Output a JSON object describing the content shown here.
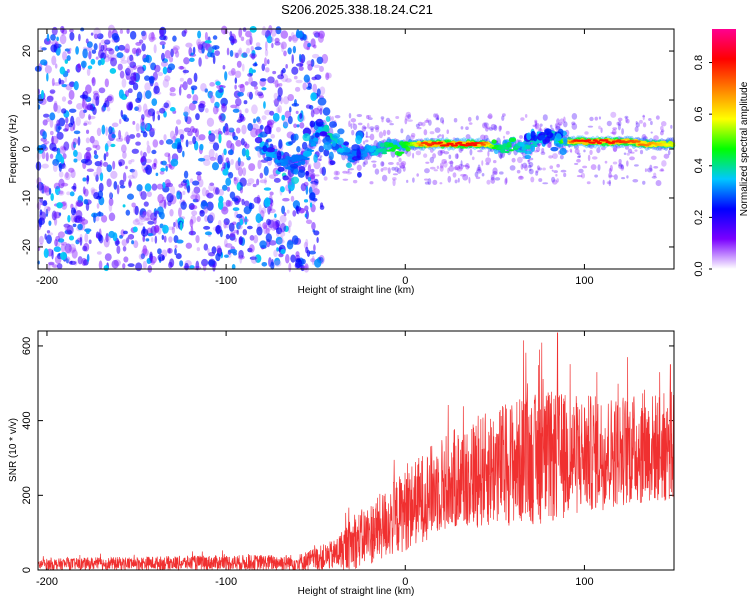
{
  "title": "S206.2025.338.18.24.C21",
  "chart_data": [
    {
      "type": "heatmap",
      "name": "spectrogram",
      "xlabel": "Height of straight line (km)",
      "ylabel": "Frequency (Hz)",
      "xlim": [
        -205,
        150
      ],
      "ylim": [
        -24.5,
        24.5
      ],
      "xticks": [
        -200,
        -100,
        0,
        100
      ],
      "yticks": [
        -20,
        -10,
        0,
        10,
        20
      ],
      "colorbar": {
        "label": "Normalized spectral amplitude",
        "range": [
          0.0,
          0.93
        ],
        "ticks": [
          0.0,
          0.2,
          0.4,
          0.6,
          0.8
        ],
        "tick_labels": [
          "0.0",
          "0.2",
          "0.4",
          "0.6",
          "0.8"
        ],
        "colormap": [
          "#ffffff",
          "#7a00ff",
          "#0000ff",
          "#00c8ff",
          "#00ff00",
          "#ffff00",
          "#ff8000",
          "#ff0000",
          "#ff0090"
        ]
      },
      "noise_region": {
        "x_range": [
          -205,
          -50
        ],
        "amplitude_range": [
          0.0,
          0.3
        ]
      },
      "ridge": [
        {
          "x": -80,
          "f": 0.5,
          "a": 0.35
        },
        {
          "x": -65,
          "f": -3.0,
          "a": 0.3
        },
        {
          "x": -55,
          "f": -1.5,
          "a": 0.3
        },
        {
          "x": -47,
          "f": 5.0,
          "a": 0.35
        },
        {
          "x": -42,
          "f": 2.5,
          "a": 0.4
        },
        {
          "x": -35,
          "f": 0.0,
          "a": 0.35
        },
        {
          "x": -30,
          "f": -1.5,
          "a": 0.3
        },
        {
          "x": -25,
          "f": -1.0,
          "a": 0.3
        },
        {
          "x": -18,
          "f": 0.0,
          "a": 0.35
        },
        {
          "x": -12,
          "f": 0.0,
          "a": 0.4
        },
        {
          "x": -8,
          "f": 0.5,
          "a": 0.45
        },
        {
          "x": -3,
          "f": 0.0,
          "a": 0.45
        },
        {
          "x": 0,
          "f": 1.0,
          "a": 0.45
        },
        {
          "x": 5,
          "f": 1.0,
          "a": 0.55
        },
        {
          "x": 10,
          "f": 1.0,
          "a": 0.75
        },
        {
          "x": 20,
          "f": 1.0,
          "a": 0.8
        },
        {
          "x": 30,
          "f": 1.0,
          "a": 0.8
        },
        {
          "x": 40,
          "f": 1.0,
          "a": 0.8
        },
        {
          "x": 45,
          "f": 1.0,
          "a": 0.7
        },
        {
          "x": 50,
          "f": 0.5,
          "a": 0.45
        },
        {
          "x": 55,
          "f": 0.0,
          "a": 0.4
        },
        {
          "x": 60,
          "f": 1.0,
          "a": 0.45
        },
        {
          "x": 65,
          "f": 0.0,
          "a": 0.35
        },
        {
          "x": 70,
          "f": 1.0,
          "a": 0.4
        },
        {
          "x": 75,
          "f": 2.5,
          "a": 0.35
        },
        {
          "x": 80,
          "f": 2.5,
          "a": 0.4
        },
        {
          "x": 85,
          "f": 2.0,
          "a": 0.35
        },
        {
          "x": 90,
          "f": 1.5,
          "a": 0.6
        },
        {
          "x": 95,
          "f": 1.5,
          "a": 0.8
        },
        {
          "x": 105,
          "f": 1.5,
          "a": 0.8
        },
        {
          "x": 115,
          "f": 1.5,
          "a": 0.8
        },
        {
          "x": 125,
          "f": 1.5,
          "a": 0.75
        },
        {
          "x": 135,
          "f": 1.0,
          "a": 0.7
        },
        {
          "x": 145,
          "f": 1.0,
          "a": 0.6
        },
        {
          "x": 150,
          "f": 1.0,
          "a": 0.55
        }
      ]
    },
    {
      "type": "line",
      "name": "snr",
      "xlabel": "Height of straight line (km)",
      "ylabel": "SNR (10 * v/v)",
      "xlim": [
        -205,
        150
      ],
      "ylim": [
        0,
        640
      ],
      "xticks": [
        -200,
        -100,
        0,
        100
      ],
      "yticks": [
        0,
        200,
        400,
        600
      ],
      "color": "#f03030",
      "envelope": [
        {
          "x": -205,
          "mean": 15,
          "spread": 15
        },
        {
          "x": -150,
          "mean": 18,
          "spread": 18
        },
        {
          "x": -100,
          "mean": 20,
          "spread": 20
        },
        {
          "x": -60,
          "mean": 20,
          "spread": 22
        },
        {
          "x": -40,
          "mean": 40,
          "spread": 40
        },
        {
          "x": -30,
          "mean": 70,
          "spread": 70
        },
        {
          "x": -15,
          "mean": 110,
          "spread": 90
        },
        {
          "x": 0,
          "mean": 160,
          "spread": 110
        },
        {
          "x": 20,
          "mean": 230,
          "spread": 130
        },
        {
          "x": 40,
          "mean": 260,
          "spread": 150
        },
        {
          "x": 60,
          "mean": 290,
          "spread": 170
        },
        {
          "x": 80,
          "mean": 300,
          "spread": 180
        },
        {
          "x": 100,
          "mean": 310,
          "spread": 160
        },
        {
          "x": 120,
          "mean": 320,
          "spread": 150
        },
        {
          "x": 150,
          "mean": 330,
          "spread": 150
        }
      ],
      "peaks": [
        {
          "x": 66,
          "y": 615
        },
        {
          "x": 75,
          "y": 590
        },
        {
          "x": 85,
          "y": 635
        },
        {
          "x": 107,
          "y": 530
        },
        {
          "x": 142,
          "y": 530
        },
        {
          "x": 148,
          "y": 550
        }
      ]
    }
  ]
}
